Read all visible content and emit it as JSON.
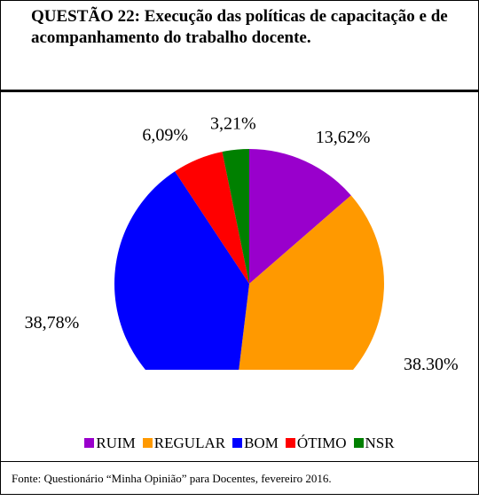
{
  "header": {
    "title": "QUESTÃO 22: Execução das políticas de capacitação e de acompanhamento do trabalho docente."
  },
  "chart_data": {
    "type": "pie",
    "categories": [
      "RUIM",
      "REGULAR",
      "BOM",
      "ÓTIMO",
      "NSR"
    ],
    "values": [
      13.62,
      38.3,
      38.78,
      6.09,
      3.21
    ],
    "value_labels": [
      "13,62%",
      "38,30%",
      "38,78%",
      "6,09%",
      "3,21%"
    ],
    "colors": [
      "#9900cc",
      "#ff9900",
      "#0000ff",
      "#ff0000",
      "#008000"
    ],
    "legend": "bottom"
  },
  "footer": {
    "source": "Fonte: Questionário “Minha Opinião” para Docentes, fevereiro 2016."
  }
}
